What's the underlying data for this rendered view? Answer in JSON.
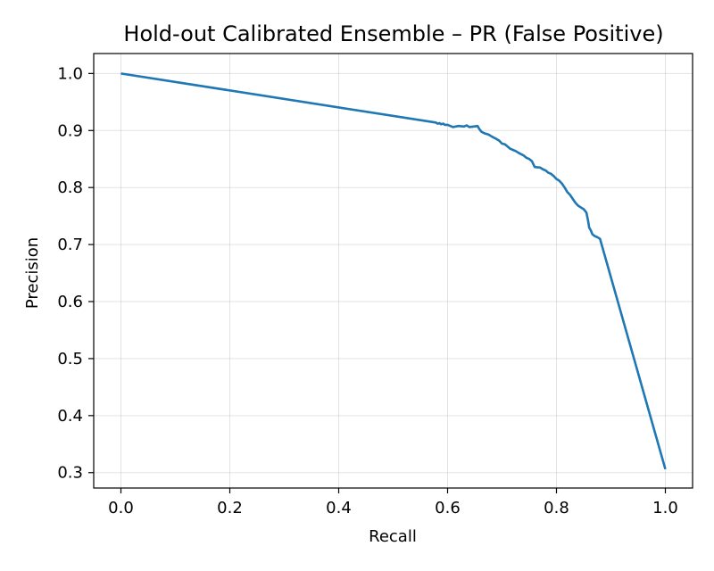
{
  "chart_data": {
    "type": "line",
    "title": "Hold-out Calibrated Ensemble – PR (False Positive)",
    "xlabel": "Recall",
    "ylabel": "Precision",
    "xlim": [
      -0.05,
      1.05
    ],
    "ylim": [
      0.273,
      1.035
    ],
    "xticks": [
      0.0,
      0.2,
      0.4,
      0.6,
      0.8,
      1.0
    ],
    "yticks": [
      0.3,
      0.4,
      0.5,
      0.6,
      0.7,
      0.8,
      0.9,
      1.0
    ],
    "xtick_labels": [
      "0.0",
      "0.2",
      "0.4",
      "0.6",
      "0.8",
      "1.0"
    ],
    "ytick_labels": [
      "0.3",
      "0.4",
      "0.5",
      "0.6",
      "0.7",
      "0.8",
      "0.9",
      "1.0"
    ],
    "grid": true,
    "series": [
      {
        "color": "#1f77b4",
        "x": [
          0.0,
          0.578,
          0.582,
          0.585,
          0.588,
          0.592,
          0.595,
          0.6,
          0.61,
          0.62,
          0.63,
          0.635,
          0.64,
          0.648,
          0.655,
          0.658,
          0.662,
          0.668,
          0.675,
          0.682,
          0.69,
          0.695,
          0.7,
          0.705,
          0.71,
          0.715,
          0.72,
          0.725,
          0.73,
          0.74,
          0.745,
          0.75,
          0.755,
          0.76,
          0.77,
          0.775,
          0.78,
          0.785,
          0.79,
          0.795,
          0.8,
          0.805,
          0.81,
          0.815,
          0.82,
          0.825,
          0.83,
          0.835,
          0.84,
          0.845,
          0.85,
          0.855,
          0.858,
          0.86,
          0.863,
          0.866,
          0.87,
          0.875,
          0.88,
          1.0
        ],
        "y": [
          1.0,
          0.914,
          0.912,
          0.913,
          0.911,
          0.912,
          0.91,
          0.91,
          0.906,
          0.908,
          0.907,
          0.909,
          0.906,
          0.907,
          0.908,
          0.903,
          0.898,
          0.895,
          0.893,
          0.889,
          0.885,
          0.882,
          0.877,
          0.876,
          0.872,
          0.868,
          0.866,
          0.864,
          0.861,
          0.856,
          0.852,
          0.85,
          0.846,
          0.836,
          0.835,
          0.832,
          0.83,
          0.826,
          0.824,
          0.82,
          0.815,
          0.812,
          0.807,
          0.8,
          0.792,
          0.787,
          0.78,
          0.773,
          0.768,
          0.765,
          0.762,
          0.756,
          0.742,
          0.73,
          0.725,
          0.718,
          0.715,
          0.713,
          0.71,
          0.306
        ]
      }
    ]
  }
}
